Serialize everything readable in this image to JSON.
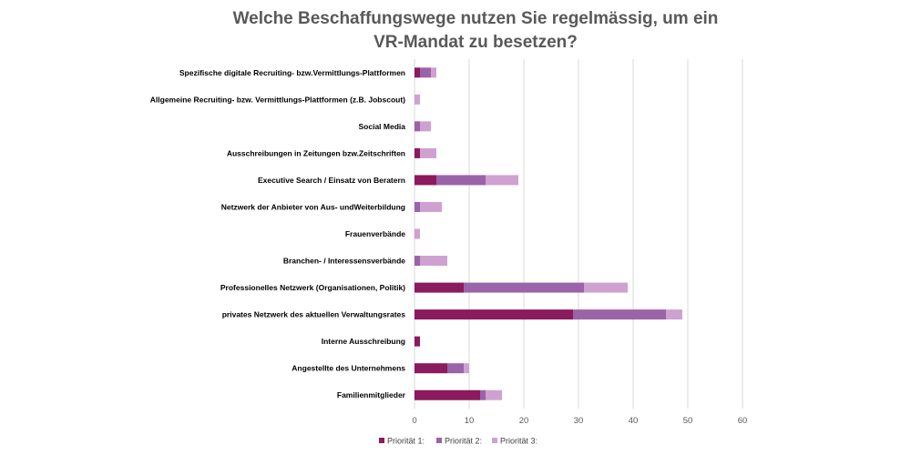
{
  "chart_data": {
    "type": "bar",
    "orientation": "horizontal",
    "stacked": true,
    "title_lines": [
      "Welche Beschaffungswege nutzen Sie regelmässig, um ein",
      "VR-Mandat zu besetzen?"
    ],
    "categories": [
      "Spezifische digitale Recruiting- bzw.Vermittlungs-Plattformen",
      "Allgemeine Recruiting- bzw. Vermittlungs-Plattformen (z.B. Jobscout)",
      "Social Media",
      "Ausschreibungen in Zeitungen bzw.Zeitschriften",
      "Executive Search / Einsatz von Beratern",
      "Netzwerk der Anbieter von Aus- undWeiterbildung",
      "Frauenverbände",
      "Branchen- / Interessensverbände",
      "Professionelles Netzwerk (Organisationen, Politik)",
      "privates Netzwerk des aktuellen Verwaltungsrates",
      "Interne Ausschreibung",
      "Angestellte des Unternehmens",
      "Familienmitglieder"
    ],
    "series": [
      {
        "name": "Priorität 1:",
        "color": "#8B1A5E",
        "values": [
          1,
          0,
          0,
          1,
          4,
          0,
          0,
          0,
          9,
          29,
          1,
          6,
          12
        ]
      },
      {
        "name": "Priorität 2:",
        "color": "#9B63A8",
        "values": [
          2,
          0,
          1,
          0,
          9,
          1,
          0,
          1,
          22,
          17,
          0,
          3,
          1
        ]
      },
      {
        "name": "Priorität 3:",
        "color": "#CFA1D1",
        "values": [
          1,
          1,
          2,
          3,
          6,
          4,
          1,
          5,
          8,
          3,
          0,
          1,
          3
        ]
      }
    ],
    "xlim": [
      0,
      60
    ],
    "xticks": [
      "0",
      "10",
      "20",
      "30",
      "40",
      "50",
      "60"
    ],
    "grid": true,
    "legend": "bottom-center"
  }
}
